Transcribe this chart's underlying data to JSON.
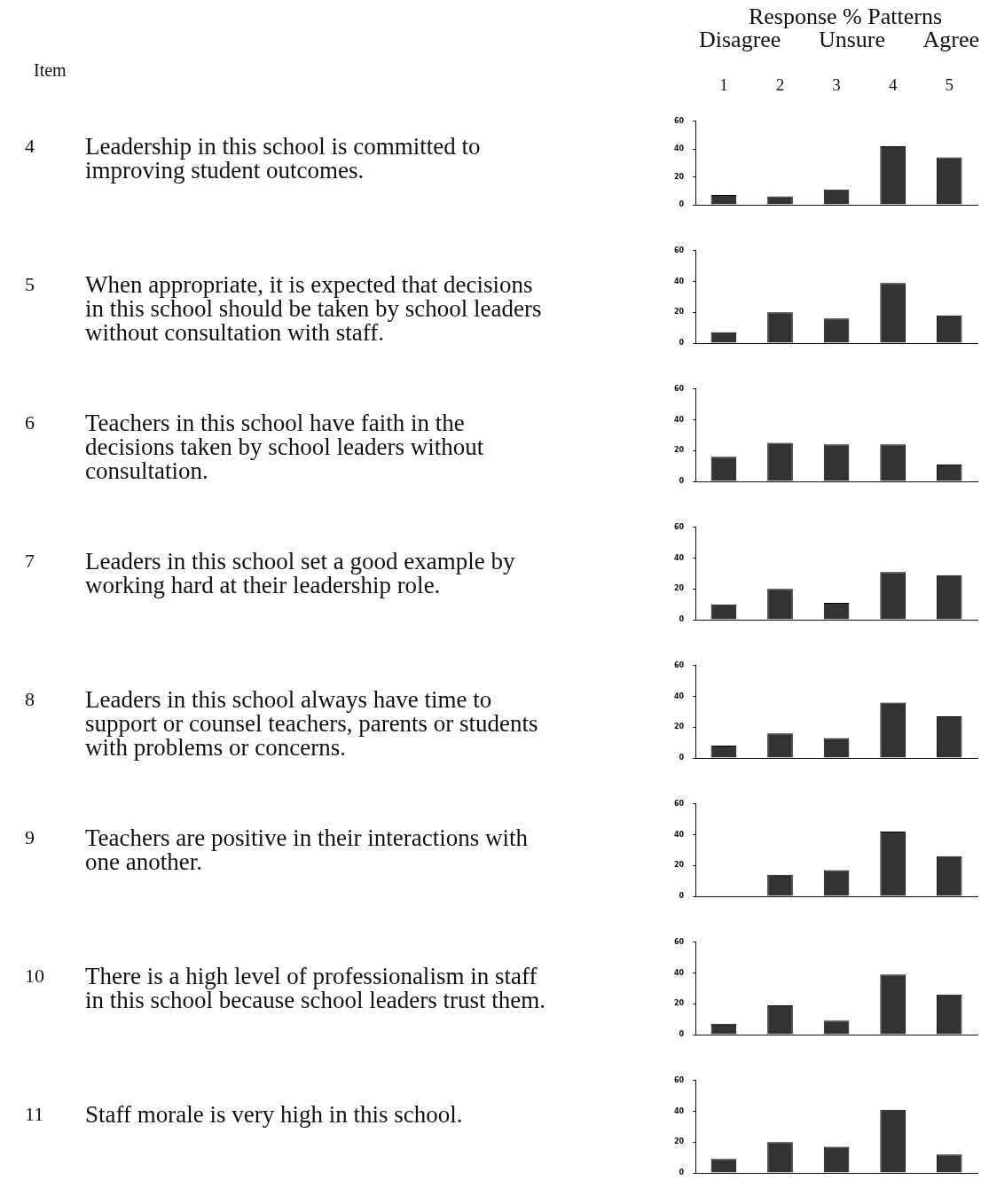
{
  "chart_data": [
    {
      "type": "bar",
      "title": "Response % Patterns",
      "annotations": [
        "Item",
        "Disagree",
        "Unsure",
        "Agree",
        "4",
        "Leadership in this school is committed to improving student outcomes."
      ],
      "categories": [
        "1",
        "2",
        "3",
        "4",
        "5"
      ],
      "values": [
        7,
        6,
        11,
        42,
        34
      ],
      "color": "#333333",
      "ylim": [
        0,
        60
      ],
      "yticks": [
        0,
        20,
        40,
        60
      ]
    },
    {
      "type": "bar",
      "annotations": [
        "5",
        "When appropriate, it is expected that decisions in this school should be taken by school leaders without consultation with staff."
      ],
      "categories": [
        "1",
        "2",
        "3",
        "4",
        "5"
      ],
      "values": [
        7,
        20,
        16,
        39,
        18
      ],
      "color": "#333333",
      "ylim": [
        0,
        60
      ],
      "yticks": [
        0,
        20,
        40,
        60
      ],
      "tick_labels": "y"
    },
    {
      "type": "bar",
      "annotations": [
        "6",
        "Teachers in this school have faith in the decisions taken by school leaders without consultation."
      ],
      "categories": [
        "1",
        "2",
        "3",
        "4",
        "5"
      ],
      "values": [
        16,
        25,
        24,
        24,
        11
      ],
      "color": "#333333",
      "ylim": [
        0,
        60
      ],
      "yticks": [
        0,
        20,
        40,
        60
      ],
      "tick_labels": "y"
    },
    {
      "type": "bar",
      "annotations": [
        "7",
        "Leaders in this school set a good example by working hard at their leadership role."
      ],
      "categories": [
        "1",
        "2",
        "3",
        "4",
        "5"
      ],
      "values": [
        10,
        20,
        11,
        31,
        29
      ],
      "color": "#333333",
      "ylim": [
        0,
        60
      ],
      "yticks": [
        0,
        20,
        40,
        60
      ],
      "tick_labels": "y"
    },
    {
      "type": "bar",
      "annotations": [
        "8",
        "Leaders in this school always have time to support or counsel teachers, parents or students with problems or concerns."
      ],
      "categories": [
        "1",
        "2",
        "3",
        "4",
        "5"
      ],
      "values": [
        8,
        16,
        13,
        36,
        27
      ],
      "color": "#333333",
      "ylim": [
        0,
        60
      ],
      "yticks": [
        0,
        20,
        40,
        60
      ],
      "tick_labels": "y"
    },
    {
      "type": "bar",
      "annotations": [
        "9",
        "Teachers are positive in their interactions with one another."
      ],
      "categories": [
        "1",
        "2",
        "3",
        "4",
        "5"
      ],
      "values": [
        0,
        14,
        17,
        42,
        26
      ],
      "color": "#333333",
      "ylim": [
        0,
        60
      ],
      "yticks": [
        0,
        20,
        40,
        60
      ],
      "tick_labels": "y"
    },
    {
      "type": "bar",
      "annotations": [
        "10",
        "There is a high level of professionalism in staff in this school because school leaders trust them."
      ],
      "categories": [
        "1",
        "2",
        "3",
        "4",
        "5"
      ],
      "values": [
        7,
        19,
        9,
        39,
        26
      ],
      "color": "#333333",
      "ylim": [
        0,
        60
      ],
      "yticks": [
        0,
        20,
        40,
        60
      ],
      "tick_labels": "y"
    },
    {
      "type": "bar",
      "annotations": [
        "11",
        "Staff morale is very high in this school."
      ],
      "categories": [
        "1",
        "2",
        "3",
        "4",
        "5"
      ],
      "values": [
        9,
        20,
        17,
        41,
        12
      ],
      "color": "#333333",
      "ylim": [
        0,
        60
      ],
      "yticks": [
        0,
        20,
        40,
        60
      ],
      "tick_labels": "y"
    }
  ]
}
